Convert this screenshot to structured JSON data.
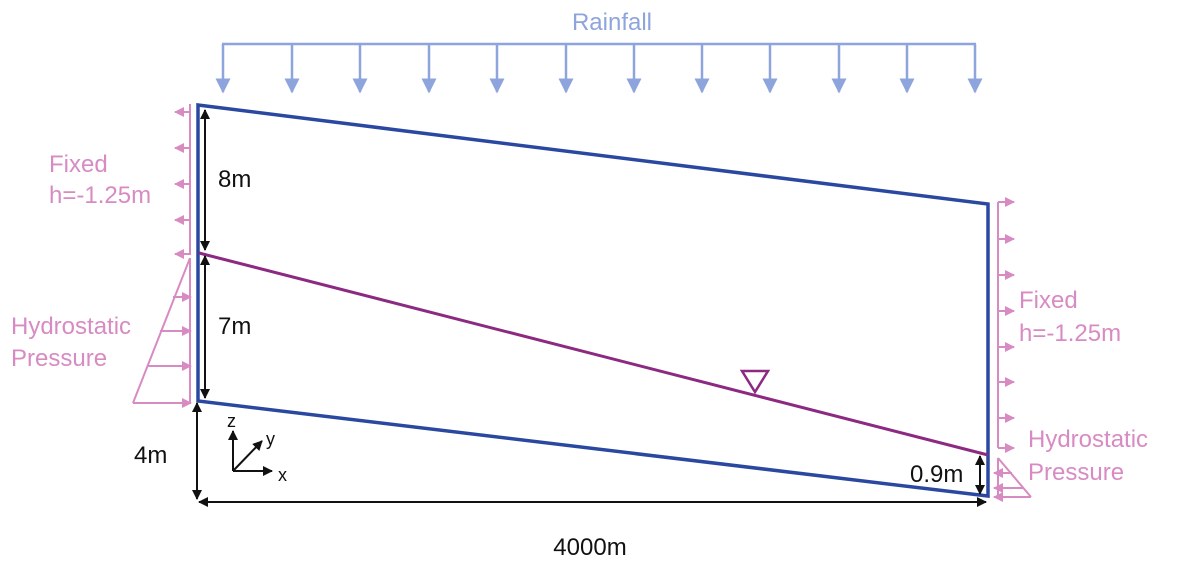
{
  "labels": {
    "rainfall": "Rainfall",
    "fixed_left": "Fixed",
    "fixed_left_h": "h=-1.25m",
    "fixed_right": "Fixed",
    "fixed_right_h": "h=-1.25m",
    "hydro_left_1": "Hydrostatic",
    "hydro_left_2": "Pressure",
    "hydro_right_1": "Hydrostatic",
    "hydro_right_2": "Pressure"
  },
  "dimensions": {
    "top_left": "8m",
    "mid_left": "7m",
    "base_left": "4m",
    "right_bottom": "0.9m",
    "length": "4000m"
  },
  "axes": {
    "z": "z",
    "y": "y",
    "x": "x"
  },
  "water_table_symbol": "water-table-triangle",
  "colors": {
    "domain_outline": "#2b48a0",
    "water_table": "#8c2a82",
    "rainfall": "#8ea4dc",
    "boundary": "#d88bc3",
    "dimension": "#111111"
  }
}
